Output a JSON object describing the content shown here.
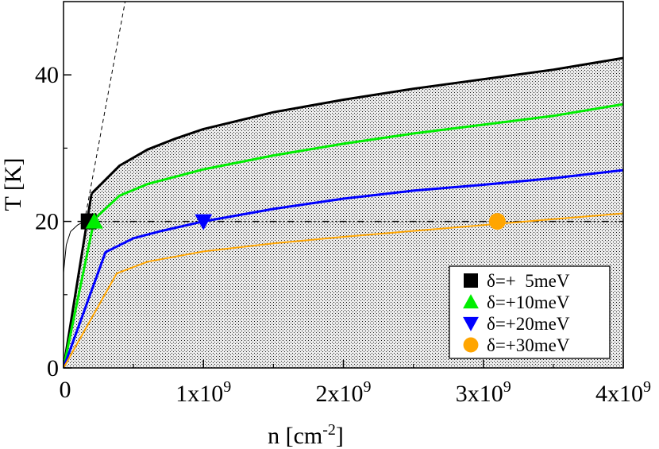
{
  "chart_data": {
    "type": "line",
    "title": "",
    "xlabel": "n [cm",
    "xlabel_sup": "-2",
    "xlabel_end": "]",
    "ylabel": "T [K]",
    "xlim": [
      0,
      4000000000
    ],
    "ylim": [
      0,
      50
    ],
    "x_ticks": [
      {
        "value": 0,
        "mantissa": "0",
        "exp": ""
      },
      {
        "value": 1000000000,
        "mantissa": "1x10",
        "exp": "9"
      },
      {
        "value": 2000000000,
        "mantissa": "2x10",
        "exp": "9"
      },
      {
        "value": 3000000000,
        "mantissa": "3x10",
        "exp": "9"
      },
      {
        "value": 4000000000,
        "mantissa": "4x10",
        "exp": "9"
      }
    ],
    "y_ticks": [
      {
        "value": 0,
        "label": "0"
      },
      {
        "value": 20,
        "label": "20"
      },
      {
        "value": 40,
        "label": "40"
      }
    ],
    "shaded_region": "area under the black curve",
    "series": [
      {
        "name": "boundary",
        "color": "#000000",
        "width": 3,
        "x": [
          200000000.0,
          400000000.0,
          600000000.0,
          800000000.0,
          1000000000.0,
          1500000000.0,
          2000000000.0,
          2500000000.0,
          3000000000.0,
          3500000000.0,
          4000000000.0
        ],
        "y": [
          23.8,
          27.6,
          29.8,
          31.3,
          32.6,
          34.9,
          36.6,
          38.1,
          39.4,
          40.7,
          42.3
        ]
      },
      {
        "name": "linear-left",
        "color": "#000000",
        "width": 3,
        "x": [
          0,
          200000000.0
        ],
        "y": [
          0,
          23.8
        ]
      },
      {
        "name": "dashed-line",
        "color": "#000000",
        "width": 1,
        "dash": "5,4",
        "x": [
          150000000.0,
          440000000.0
        ],
        "y": [
          20,
          50
        ]
      },
      {
        "name": "thin-curve",
        "color": "#000000",
        "width": 1,
        "x": [
          0,
          20000000.0,
          50000000.0,
          100000000.0,
          150000000.0
        ],
        "y": [
          13,
          16.8,
          18.6,
          19.5,
          20
        ]
      },
      {
        "name": "reference-line",
        "color": "#000000",
        "width": 1.5,
        "dash": "9,3,2,3,2,3",
        "x": [
          100000000.0,
          4000000000.0
        ],
        "y": [
          20,
          20
        ]
      },
      {
        "name": "δ=+10meV",
        "color": "#00ee00",
        "width": 3,
        "x": [
          0,
          220000000.0,
          400000000.0,
          600000000.0,
          1000000000.0,
          1500000000.0,
          2000000000.0,
          2500000000.0,
          3000000000.0,
          3500000000.0,
          4000000000.0
        ],
        "y": [
          0,
          20.3,
          23.5,
          25.1,
          27.1,
          29.0,
          30.6,
          32.0,
          33.2,
          34.4,
          36.0
        ]
      },
      {
        "name": "δ=+20meV",
        "color": "#0000ff",
        "width": 3,
        "x": [
          0,
          300000000.0,
          500000000.0,
          700000000.0,
          1000000000.0,
          1500000000.0,
          2000000000.0,
          2500000000.0,
          3000000000.0,
          3500000000.0,
          4000000000.0
        ],
        "y": [
          0,
          15.8,
          17.7,
          18.7,
          20.0,
          21.7,
          23.1,
          24.2,
          25.0,
          25.9,
          27.0
        ]
      },
      {
        "name": "δ=+30meV",
        "color": "#ffa500",
        "width": 2,
        "x": [
          0,
          380000000.0,
          600000000.0,
          1000000000.0,
          1500000000.0,
          2000000000.0,
          2500000000.0,
          3000000000.0,
          3500000000.0,
          4000000000.0
        ],
        "y": [
          0,
          12.9,
          14.5,
          15.9,
          17.0,
          17.9,
          18.7,
          19.5,
          20.3,
          21.1
        ]
      }
    ],
    "markers": [
      {
        "series": "δ=+ 5meV",
        "shape": "square",
        "color": "#000000",
        "x": 180000000.0,
        "y": 20
      },
      {
        "series": "δ=+10meV",
        "shape": "triangle-up",
        "color": "#00ee00",
        "x": 220000000.0,
        "y": 20
      },
      {
        "series": "δ=+20meV",
        "shape": "triangle-down",
        "color": "#0000ff",
        "x": 1000000000.0,
        "y": 20
      },
      {
        "series": "δ=+30meV",
        "shape": "circle",
        "color": "#ffa500",
        "x": 3100000000.0,
        "y": 20
      }
    ],
    "legend": {
      "position": "bottom-right",
      "entries": [
        {
          "label": "δ=+  5meV",
          "shape": "square",
          "color": "#000000"
        },
        {
          "label": "δ=+10meV",
          "shape": "triangle-up",
          "color": "#00ee00"
        },
        {
          "label": "δ=+20meV",
          "shape": "triangle-down",
          "color": "#0000ff"
        },
        {
          "label": "δ=+30meV",
          "shape": "circle",
          "color": "#ffa500"
        }
      ]
    }
  }
}
